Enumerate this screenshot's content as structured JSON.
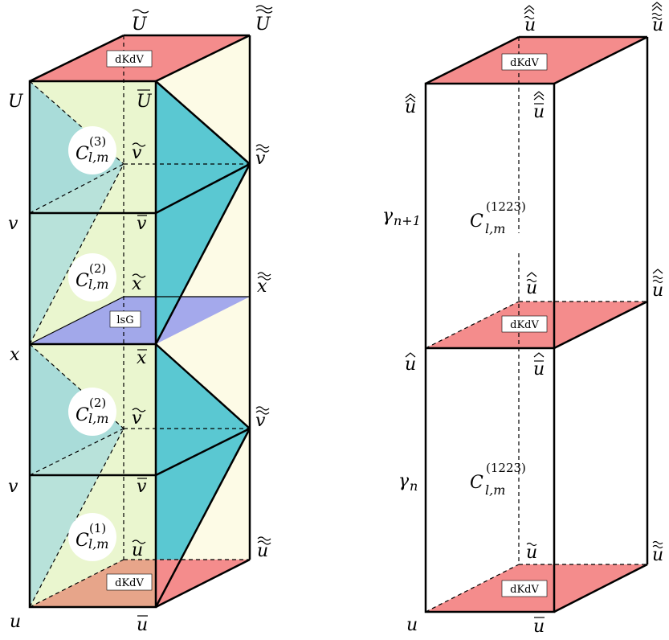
{
  "colors": {
    "pink": "#f48c8c",
    "teal": "#5ac8d2",
    "teal_light": "#a9dcd9",
    "green_light": "#eaf6cf",
    "cream": "#fdfbe6",
    "blue": "#9aa0ec",
    "peach": "#e7a58a"
  },
  "left": {
    "top_label": "dKdV",
    "bottom_label": "dKdV",
    "mid_label": "lsG",
    "c3": {
      "base": "C",
      "sup": "(3)",
      "sub": "l,m"
    },
    "c2a": {
      "base": "C",
      "sup": "(2)",
      "sub": "l,m"
    },
    "c2b": {
      "base": "C",
      "sup": "(2)",
      "sub": "l,m"
    },
    "c1": {
      "base": "C",
      "sup": "(1)",
      "sub": "l,m"
    },
    "vertices": {
      "U": "U",
      "U_bar": "U",
      "U_tilde": "U",
      "U_tt": "U",
      "v_top": "v",
      "v_top_bar": "v",
      "v_top_tilde": "v",
      "v_top_tt": "v",
      "v_mid": "v",
      "v_mid_bar": "v",
      "x": "x",
      "x_bar": "x",
      "x_tilde": "x",
      "x_tt": "x",
      "v_low_tilde": "v",
      "v_low_tt": "v",
      "v_low": "v",
      "v_low_bar": "v",
      "u": "u",
      "u_bar": "u",
      "u_tilde": "u",
      "u_tt": "u"
    }
  },
  "right": {
    "top_label": "dKdV",
    "mid_label": "dKdV",
    "bottom_label": "dKdV",
    "c_upper": {
      "base": "C",
      "sup": "(1223)",
      "sub": "l,m"
    },
    "c_lower": {
      "base": "C",
      "sup": "(1223)",
      "sub": "l,m"
    },
    "gamma_upper": {
      "base": "γ",
      "sub": "n+1"
    },
    "gamma_lower": {
      "base": "γ",
      "sub": "n"
    },
    "vertices": {
      "u": "u",
      "u_bar": "u",
      "u_tilde": "u",
      "u_tt": "u",
      "u_hat": "u",
      "u_hat_bar": "u",
      "u_hat_tilde": "u",
      "u_hat_tt": "u",
      "u_hh": "u",
      "u_hh_bar": "u",
      "u_hh_tilde": "u",
      "u_hh_tt": "u"
    }
  }
}
